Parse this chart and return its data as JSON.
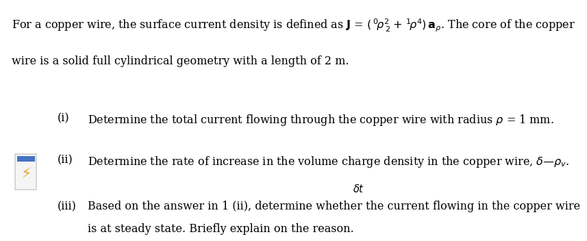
{
  "bg_color": "#ffffff",
  "text_color": "#000000",
  "font_size_main": 11.5,
  "font_size_sub": 11.5,
  "line1": "For a copper wire, the surface current density is defined as ",
  "line1_math": "J = (°—ρ²² + ¹ρ⁴) aρ",
  "line1_end": ". The core of the copper",
  "line2": "wire is a solid full cylindrical geometry with a length of 2 m.",
  "item_i_label": "(i)",
  "item_i_text": "Determine the total current flowing through the copper wire with radius ρ = 1 mm.",
  "item_ii_label": "(ii)",
  "item_ii_text": "Determine the rate of increase in the volume charge density in the copper wire, δ—ρv.",
  "item_ii_sub": "δt",
  "item_iii_label": "(iii)",
  "item_iii_text1": "Based on the answer in 1 (ii), determine whether the current flowing in the copper wire",
  "item_iii_text2": "is at steady state. Briefly explain on the reason.",
  "icon_box_color": "#d0d0d0",
  "icon_box_fill": "#f5f5f5",
  "icon_bolt_color": "#e8a830",
  "icon_bar_color": "#4472c4"
}
